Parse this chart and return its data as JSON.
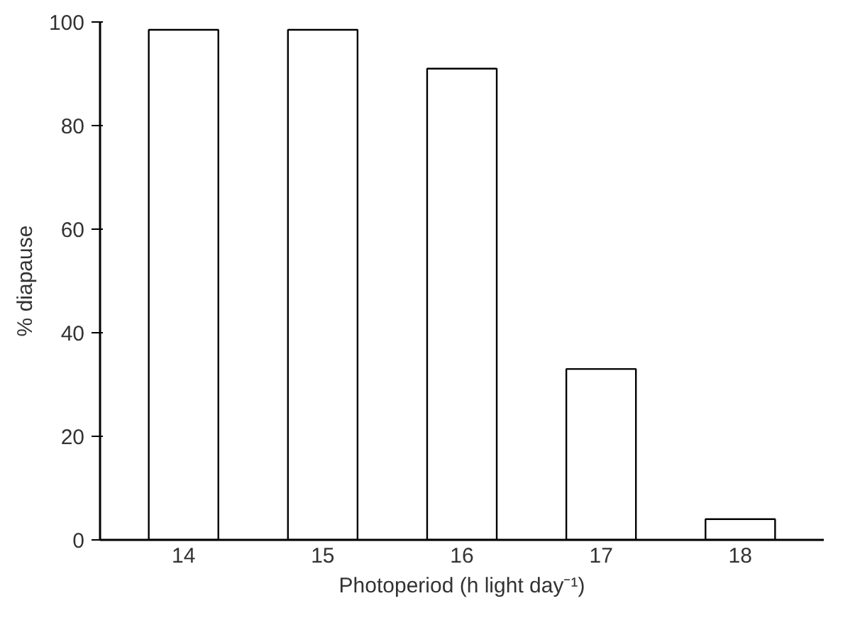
{
  "chart_data": {
    "type": "bar",
    "xlabel": "Photoperiod (h light day⁻¹)",
    "ylabel": "% diapause",
    "categories": [
      "14",
      "15",
      "16",
      "17",
      "18"
    ],
    "values": [
      98.5,
      98.5,
      91,
      33,
      4
    ],
    "color": "#ffffff",
    "ylim": [
      0,
      100
    ],
    "yticks": [
      0,
      20,
      40,
      60,
      80,
      100
    ],
    "grid": false
  }
}
